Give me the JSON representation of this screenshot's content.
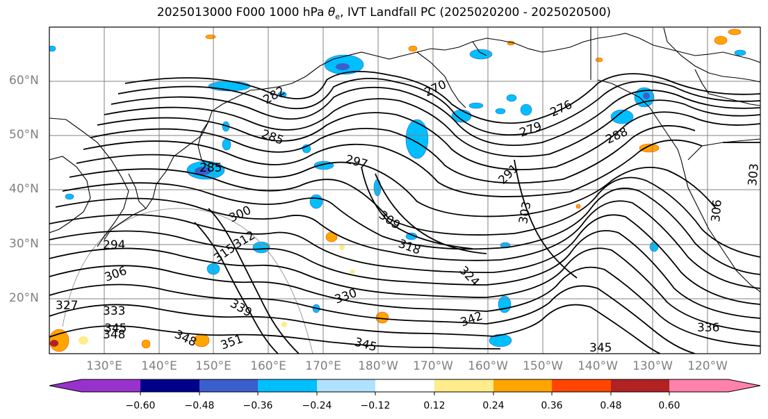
{
  "title": {
    "prefix": "2025013000 F000 1000 hPa ",
    "theta": "θ",
    "theta_sub": "e",
    "suffix": ", IVT Landfall PC (2025020200 - 2025020500)"
  },
  "lat_labels": [
    "60°N",
    "50°N",
    "40°N",
    "30°N",
    "20°N"
  ],
  "lon_labels": [
    "130°E",
    "140°E",
    "150°E",
    "160°E",
    "170°E",
    "180°W",
    "170°W",
    "160°W",
    "150°W",
    "140°W",
    "130°W",
    "120°W"
  ],
  "contour_labels": [
    "282",
    "270",
    "276",
    "279",
    "288",
    "285",
    "285",
    "297",
    "291",
    "303",
    "300",
    "309",
    "312",
    "315",
    "318",
    "324",
    "294",
    "306",
    "330",
    "327",
    "333",
    "339",
    "342",
    "345",
    "348",
    "348",
    "351",
    "345",
    "345",
    "336",
    "306",
    "303"
  ],
  "colorbar": {
    "colors": [
      "#9932cc",
      "#00008b",
      "#3a5fcd",
      "#00bfff",
      "#b0e2ff",
      "#ffffff",
      "#ffec8b",
      "#ffa500",
      "#ff4500",
      "#b22222",
      "#ff82ab"
    ],
    "tick_labels": [
      "−0.60",
      "−0.48",
      "−0.36",
      "−0.24",
      "−0.12",
      "0.12",
      "0.24",
      "0.36",
      "0.48",
      "0.60"
    ]
  },
  "colors": {
    "grid": "#808080",
    "contour": "#000000",
    "axis_label": "#808080"
  }
}
